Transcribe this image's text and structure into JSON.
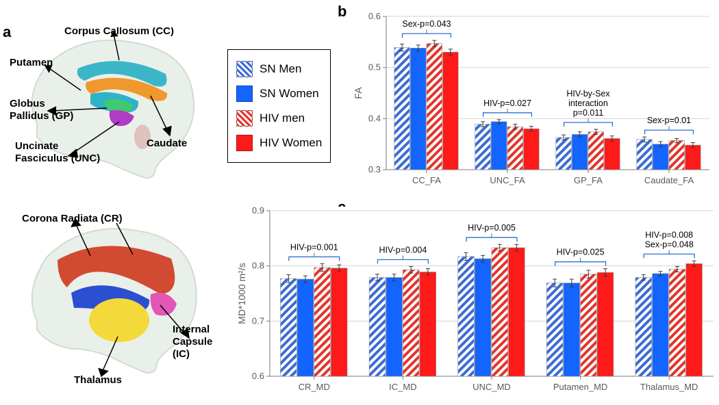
{
  "panel_labels": {
    "a": "a",
    "b": "b",
    "c": "c"
  },
  "colors": {
    "sn_men_stripe": "#3a6bd6",
    "sn_women": "#1464ff",
    "hiv_men_stripe": "#e3342a",
    "hiv_women": "#ff1a1a",
    "axis": "#7a7a7a",
    "grid": "#d6d6d6",
    "tick_text": "#595959",
    "error": "#3a3a3a",
    "bracket": "#2f6fd0",
    "border": "#8a8a8a",
    "brain_outline": "#c9d5c9",
    "brain_fill": "#e6eee6",
    "brain_fill2": "#d9e5d9",
    "region_cc": "#3bb6c7",
    "region_putamen": "#2fb3c6",
    "region_gp": "#42c96f",
    "region_caudate": "#f0982e",
    "region_unc": "#b03bc6",
    "region_cr": "#d24a32",
    "region_ic_blue": "#2a4fd0",
    "region_ic_pink": "#e256b6",
    "region_thalamus": "#f4d93a"
  },
  "legend": {
    "items": [
      {
        "label": "SN Men",
        "pattern": "blue-stripe"
      },
      {
        "label": "SN Women",
        "pattern": "blue-solid"
      },
      {
        "label": "HIV men",
        "pattern": "red-stripe"
      },
      {
        "label": "HIV Women",
        "pattern": "red-solid"
      }
    ]
  },
  "brain_top": {
    "labels": [
      {
        "text": "Corpus Callosum (CC)"
      },
      {
        "text": "Putamen"
      },
      {
        "text": "Globus"
      },
      {
        "text": "Pallidus (GP)"
      },
      {
        "text": "Uncinate"
      },
      {
        "text": "Fasciculus (UNC)"
      },
      {
        "text": "Caudate"
      }
    ]
  },
  "brain_bottom": {
    "labels": [
      {
        "text": "Corona Radiata (CR)"
      },
      {
        "text": "Internal"
      },
      {
        "text": "Capsule"
      },
      {
        "text": "(IC)"
      },
      {
        "text": "Thalamus"
      }
    ]
  },
  "chart_b": {
    "type": "bar",
    "y_axis_label": "FA",
    "ylim": [
      0.3,
      0.6
    ],
    "ytick_step": 0.1,
    "categories": [
      "CC_FA",
      "UNC_FA",
      "GP_FA",
      "Caudate_FA"
    ],
    "series": [
      {
        "key": "SN Men",
        "pattern": "blue-stripe",
        "values": [
          0.539,
          0.389,
          0.363,
          0.359
        ],
        "err": [
          0.007,
          0.005,
          0.005,
          0.005
        ]
      },
      {
        "key": "SN Women",
        "pattern": "blue-solid",
        "values": [
          0.538,
          0.394,
          0.369,
          0.35
        ],
        "err": [
          0.006,
          0.004,
          0.005,
          0.005
        ]
      },
      {
        "key": "HIV men",
        "pattern": "red-stripe",
        "values": [
          0.547,
          0.384,
          0.374,
          0.357
        ],
        "err": [
          0.006,
          0.005,
          0.005,
          0.004
        ]
      },
      {
        "key": "HIV Women",
        "pattern": "red-solid",
        "values": [
          0.53,
          0.38,
          0.361,
          0.348
        ],
        "err": [
          0.006,
          0.005,
          0.005,
          0.005
        ]
      }
    ],
    "annotations": [
      {
        "group": 0,
        "lines": [
          "Sex-p=0.043"
        ]
      },
      {
        "group": 1,
        "lines": [
          "HIV-p=0.027"
        ]
      },
      {
        "group": 2,
        "lines": [
          "HIV-by-Sex",
          "interaction",
          "p=0.011"
        ]
      },
      {
        "group": 3,
        "lines": [
          "Sex-p=0.01"
        ]
      }
    ],
    "bar_width": 0.2,
    "group_gap": 0.26,
    "axis_fontsize": 14,
    "tick_fontsize": 13,
    "ann_fontsize": 12.5
  },
  "chart_c": {
    "type": "bar",
    "y_axis_label": "MD*1000 m²/s",
    "ylim": [
      0.6,
      0.9
    ],
    "ytick_step": 0.1,
    "categories": [
      "CR_MD",
      "IC_MD",
      "UNC_MD",
      "Putamen_MD",
      "Thalamus_MD"
    ],
    "series": [
      {
        "key": "SN Men",
        "pattern": "blue-stripe",
        "values": [
          0.777,
          0.779,
          0.817,
          0.769,
          0.779
        ],
        "err": [
          0.007,
          0.006,
          0.007,
          0.007,
          0.005
        ]
      },
      {
        "key": "SN Women",
        "pattern": "blue-solid",
        "values": [
          0.776,
          0.779,
          0.813,
          0.769,
          0.786
        ],
        "err": [
          0.006,
          0.006,
          0.006,
          0.007,
          0.004
        ]
      },
      {
        "key": "HIV men",
        "pattern": "red-stripe",
        "values": [
          0.797,
          0.793,
          0.833,
          0.785,
          0.794
        ],
        "err": [
          0.007,
          0.006,
          0.006,
          0.007,
          0.005
        ]
      },
      {
        "key": "HIV Women",
        "pattern": "red-solid",
        "values": [
          0.796,
          0.789,
          0.833,
          0.788,
          0.804
        ],
        "err": [
          0.006,
          0.006,
          0.006,
          0.007,
          0.005
        ]
      }
    ],
    "annotations": [
      {
        "group": 0,
        "lines": [
          "HIV-p=0.001"
        ]
      },
      {
        "group": 1,
        "lines": [
          "HIV-p=0.004"
        ]
      },
      {
        "group": 2,
        "lines": [
          "HIV-p=0.005"
        ]
      },
      {
        "group": 3,
        "lines": [
          "HIV-p=0.025"
        ]
      },
      {
        "group": 4,
        "lines": [
          "HIV-p=0.008",
          "Sex-p=0.048"
        ]
      }
    ],
    "bar_width": 0.19,
    "group_gap": 0.28,
    "axis_fontsize": 14,
    "tick_fontsize": 13,
    "ann_fontsize": 12.5
  }
}
